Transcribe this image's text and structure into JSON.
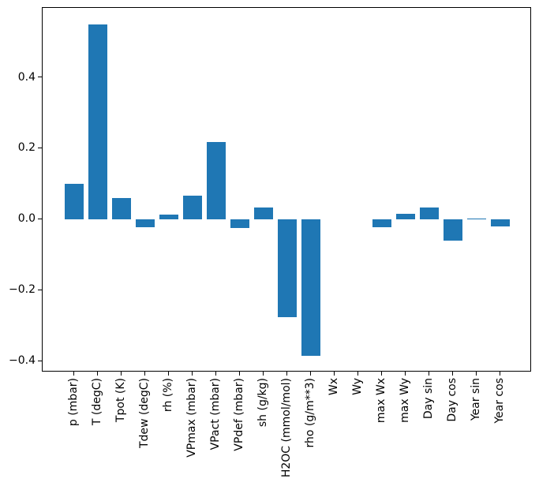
{
  "figure": {
    "background": "#ffffff",
    "axis_color": "#000000"
  },
  "chart_data": {
    "type": "bar",
    "title": "",
    "xlabel": "",
    "ylabel": "",
    "categories": [
      "p (mbar)",
      "T (degC)",
      "Tpot (K)",
      "Tdew (degC)",
      "rh (%)",
      "VPmax (mbar)",
      "VPact (mbar)",
      "VPdef (mbar)",
      "sh (g/kg)",
      "H2OC (mmol/mol)",
      "rho (g/m**3)",
      "Wx",
      "Wy",
      "max Wx",
      "max Wy",
      "Day sin",
      "Day cos",
      "Year sin",
      "Year cos"
    ],
    "values": [
      0.1,
      0.55,
      0.061,
      -0.021,
      0.013,
      0.067,
      0.219,
      -0.023,
      0.034,
      -0.276,
      -0.384,
      0.0,
      0.0,
      -0.022,
      0.017,
      0.034,
      -0.06,
      0.003,
      -0.02
    ],
    "bar_color": "#1f77b4",
    "yticks": [
      -0.4,
      -0.2,
      0.0,
      0.2,
      0.4
    ],
    "ylim": [
      -0.431,
      0.597
    ],
    "xtick_rotation_deg": 90,
    "grid": false,
    "legend": null
  }
}
